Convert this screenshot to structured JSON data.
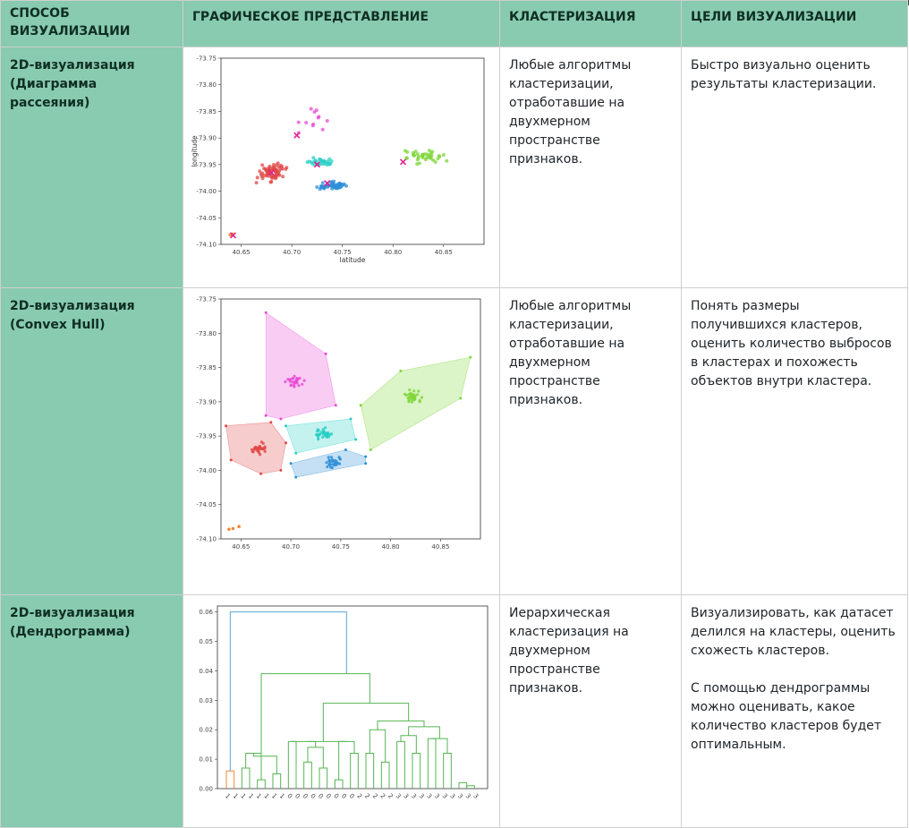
{
  "header": {
    "col1": "СПОСОБ ВИЗУАЛИЗАЦИИ",
    "col2": "ГРАФИЧЕСКОЕ ПРЕДСТАВЛЕНИЕ",
    "col3": "КЛАСТЕРИЗАЦИЯ",
    "col4": "ЦЕЛИ ВИЗУАЛИЗАЦИИ"
  },
  "rows": [
    {
      "method": "2D-визуализация (Диаграмма рассеяния)",
      "clustering": "Любые алгоритмы кластеризации, отработавшие на двухмерном пространстве признаков.",
      "goals": [
        "Быстро визуально оценить результаты кластеризации."
      ]
    },
    {
      "method": "2D-визуализация (Convex Hull)",
      "clustering": "Любые алгоритмы кластеризации, отработавшие на двухмерном пространстве признаков.",
      "goals": [
        "Понять размеры получившихся кластеров, оценить количество выбросов в кластерах и похожесть объектов внутри кластера."
      ]
    },
    {
      "method": "2D-визуализация (Дендрограмма)",
      "clustering": "Иерархическая кластеризация на двухмерном пространстве признаков.",
      "goals": [
        "Визуализировать, как датасет делился на кластеры, оценить схожесть кластеров.",
        "С помощью дендрограммы можно оценивать, какое количество кластеров будет оптимальным."
      ]
    }
  ],
  "chart_data": [
    {
      "type": "scatter",
      "xlabel": "latitude",
      "ylabel": "longitude",
      "xlim": [
        40.63,
        40.89
      ],
      "ylim": [
        -74.1,
        -73.75
      ],
      "xticks": [
        "40.65",
        "40.70",
        "40.75",
        "40.80",
        "40.85"
      ],
      "yticks": [
        "-73.75",
        "-73.80",
        "-73.85",
        "-73.90",
        "-73.95",
        "-74.00",
        "-74.05",
        "-74.10"
      ],
      "series": [
        {
          "color": "#e04848",
          "center": [
            40.68,
            -73.965
          ],
          "spread": [
            0.018,
            0.022
          ],
          "count": 70
        },
        {
          "color": "#2f8fd8",
          "center": [
            40.74,
            -73.99
          ],
          "spread": [
            0.02,
            0.011
          ],
          "count": 55
        },
        {
          "color": "#27cfc4",
          "center": [
            40.73,
            -73.945
          ],
          "spread": [
            0.017,
            0.01
          ],
          "count": 30
        },
        {
          "color": "#7fd63a",
          "center": [
            40.83,
            -73.935
          ],
          "spread": [
            0.03,
            0.018
          ],
          "count": 40
        },
        {
          "color": "#e84bd5",
          "center": [
            40.72,
            -73.87
          ],
          "spread": [
            0.025,
            0.04
          ],
          "count": 12
        },
        {
          "color": "#f0883a",
          "center": [
            40.64,
            -74.082
          ],
          "spread": [
            0.004,
            0.003
          ],
          "count": 4
        }
      ],
      "centroids": [
        [
          40.68,
          -73.965
        ],
        [
          40.735,
          -73.985
        ],
        [
          40.725,
          -73.95
        ],
        [
          40.81,
          -73.945
        ],
        [
          40.705,
          -73.895
        ],
        [
          40.642,
          -74.083
        ]
      ]
    },
    {
      "type": "scatter",
      "xlim": [
        40.63,
        40.89
      ],
      "ylim": [
        -74.1,
        -73.75
      ],
      "xticks": [
        "40.65",
        "40.70",
        "40.75",
        "40.80",
        "40.85"
      ],
      "yticks": [
        "-73.75",
        "-73.80",
        "-73.85",
        "-73.90",
        "-73.95",
        "-74.00",
        "-74.05",
        "-74.10"
      ],
      "hulls": [
        {
          "color": "#e84bd5",
          "points": [
            [
              40.675,
              -73.77
            ],
            [
              40.735,
              -73.83
            ],
            [
              40.745,
              -73.905
            ],
            [
              40.69,
              -73.925
            ],
            [
              40.675,
              -73.92
            ]
          ]
        },
        {
          "color": "#e04848",
          "points": [
            [
              40.635,
              -73.935
            ],
            [
              40.68,
              -73.93
            ],
            [
              40.695,
              -73.96
            ],
            [
              40.69,
              -74.0
            ],
            [
              40.67,
              -74.005
            ],
            [
              40.64,
              -73.985
            ]
          ]
        },
        {
          "color": "#27cfc4",
          "points": [
            [
              40.695,
              -73.935
            ],
            [
              40.76,
              -73.925
            ],
            [
              40.765,
              -73.955
            ],
            [
              40.705,
              -73.975
            ]
          ]
        },
        {
          "color": "#2f8fd8",
          "points": [
            [
              40.7,
              -73.99
            ],
            [
              40.755,
              -73.97
            ],
            [
              40.775,
              -73.98
            ],
            [
              40.775,
              -73.99
            ],
            [
              40.705,
              -74.01
            ]
          ]
        },
        {
          "color": "#7fd63a",
          "points": [
            [
              40.77,
              -73.905
            ],
            [
              40.81,
              -73.855
            ],
            [
              40.88,
              -73.835
            ],
            [
              40.87,
              -73.895
            ],
            [
              40.78,
              -73.97
            ]
          ]
        }
      ]
    },
    {
      "type": "dendrogram",
      "yticks": [
        "0.00",
        "0.01",
        "0.02",
        "0.03",
        "0.04",
        "0.05",
        "0.06"
      ],
      "ylim": [
        0,
        0.062
      ],
      "leaf_labels": [
        "1",
        "1",
        "1",
        "1",
        "1",
        "1",
        "1",
        "1",
        "0",
        "0",
        "0",
        "0",
        "0",
        "0",
        "0",
        "0",
        "0",
        "2",
        "2",
        "2",
        "2",
        "2",
        "3",
        "3",
        "3",
        "3",
        "3",
        "3",
        "3",
        "3",
        "3",
        "3",
        "3"
      ],
      "colors": {
        "top": "#5aa6d6",
        "orange": "#f0883a",
        "green": "#55b553"
      }
    }
  ]
}
